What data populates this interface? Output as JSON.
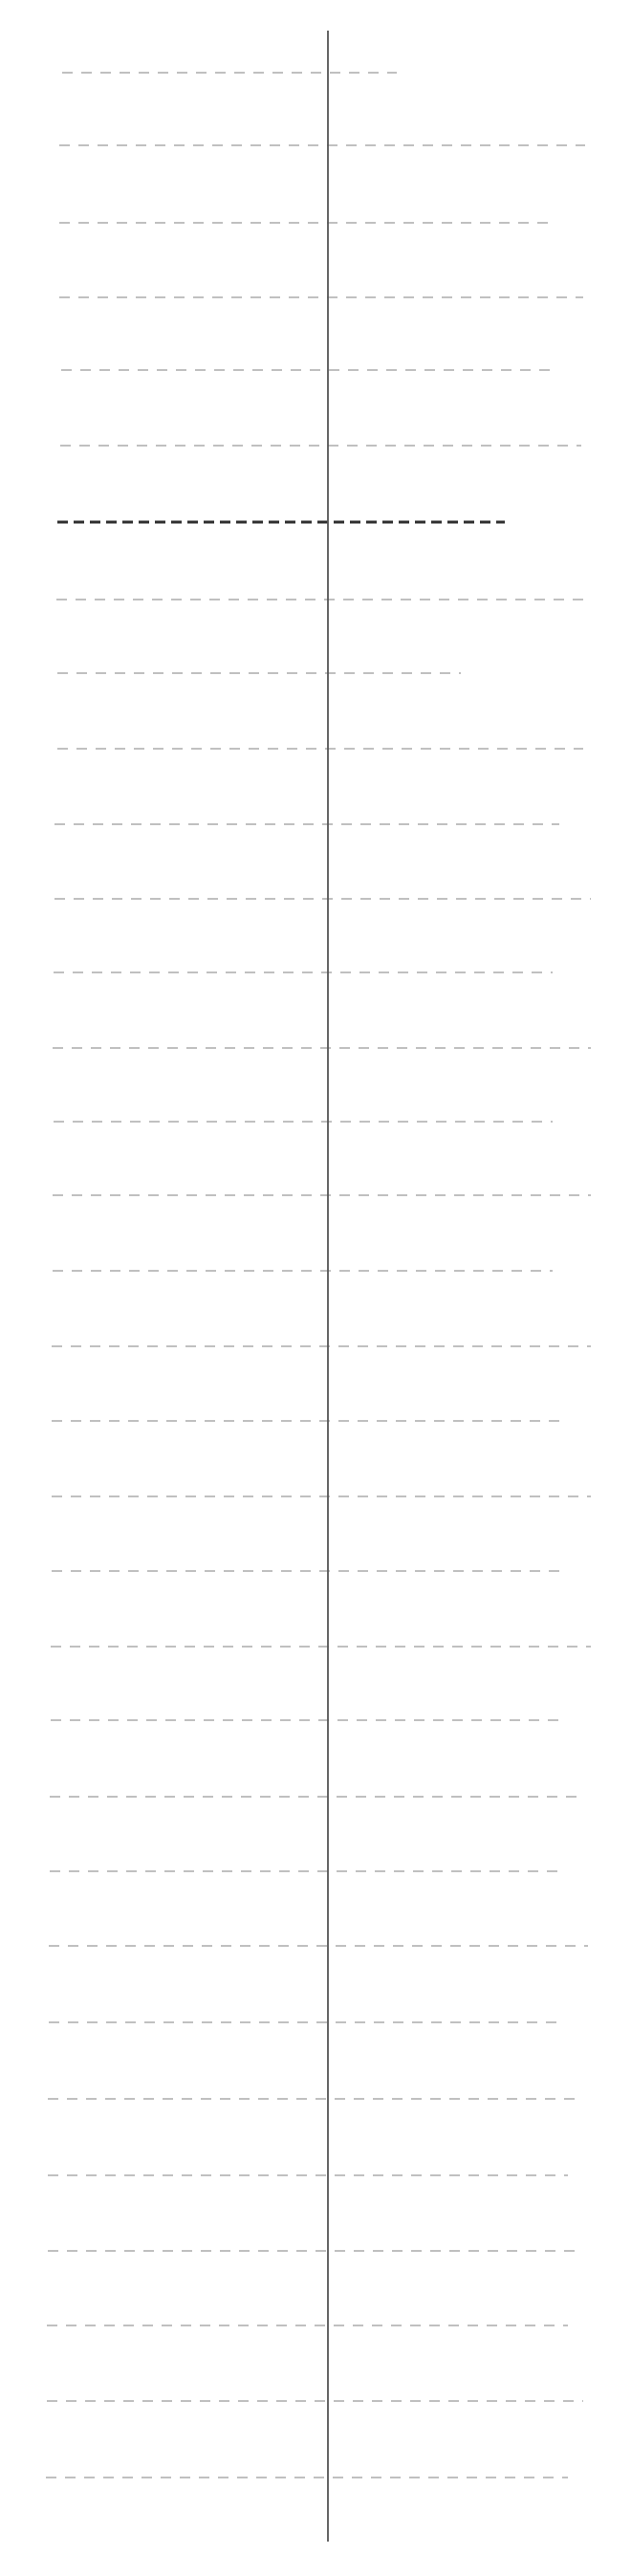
{
  "diagram": {
    "lines": [
      {
        "emphasis": false
      },
      {
        "emphasis": false
      },
      {
        "emphasis": false
      },
      {
        "emphasis": false
      },
      {
        "emphasis": false
      },
      {
        "emphasis": false
      },
      {
        "emphasis": true
      },
      {
        "emphasis": false
      },
      {
        "emphasis": false
      },
      {
        "emphasis": false
      },
      {
        "emphasis": false
      },
      {
        "emphasis": false
      },
      {
        "emphasis": false
      },
      {
        "emphasis": false
      },
      {
        "emphasis": false
      },
      {
        "emphasis": false
      },
      {
        "emphasis": false
      },
      {
        "emphasis": false
      },
      {
        "emphasis": false
      },
      {
        "emphasis": false
      },
      {
        "emphasis": false
      },
      {
        "emphasis": false
      },
      {
        "emphasis": false
      },
      {
        "emphasis": false
      },
      {
        "emphasis": false
      },
      {
        "emphasis": false
      },
      {
        "emphasis": false
      },
      {
        "emphasis": false
      },
      {
        "emphasis": false
      },
      {
        "emphasis": false
      },
      {
        "emphasis": false
      },
      {
        "emphasis": false
      },
      {
        "emphasis": false
      },
      {
        "emphasis": false
      }
    ],
    "colors": {
      "axis": "#555555",
      "dash": "#9a9a9a",
      "dash_emphasis": "#2f2f2f",
      "background": "#ffffff"
    }
  }
}
